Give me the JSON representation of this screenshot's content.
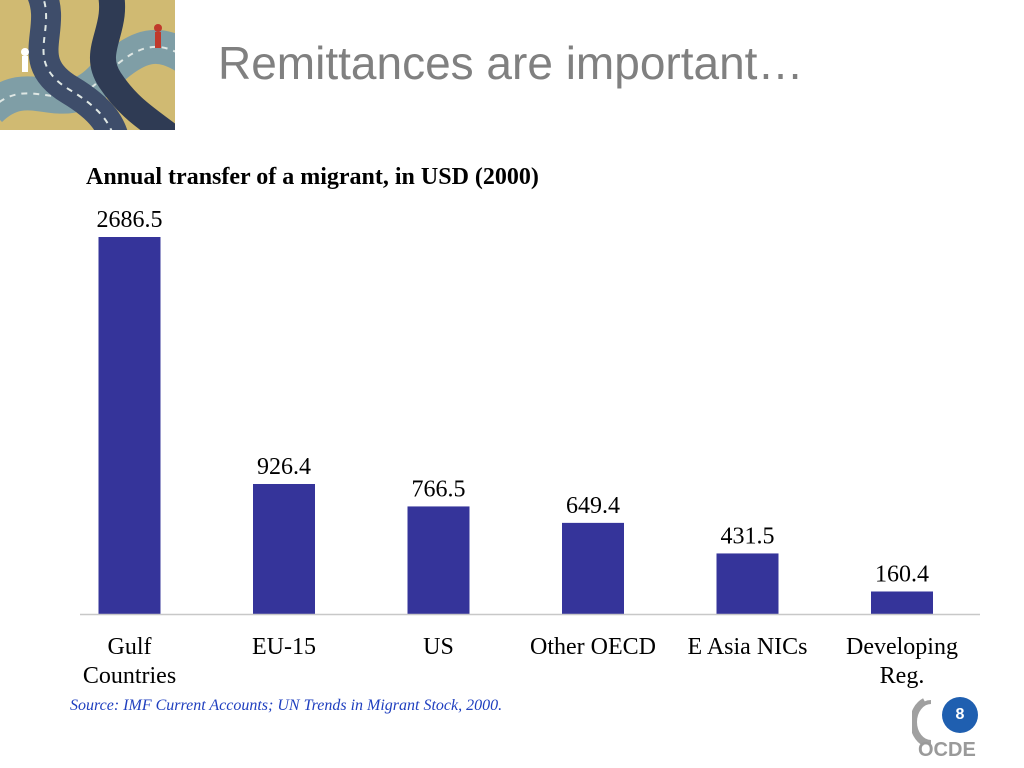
{
  "slide": {
    "title": "Remittances are important…",
    "source": "Source: IMF Current Accounts; UN Trends in Migrant Stock, 2000.",
    "page_number": "8",
    "logo_text": "OCDE"
  },
  "colors": {
    "bar": "#35349a",
    "title": "#808080",
    "source": "#1f3fbf",
    "badge": "#1f5fb0"
  },
  "chart_data": {
    "type": "bar",
    "title": "Annual transfer of a migrant, in USD (2000)",
    "categories": [
      [
        "Gulf",
        "Countries"
      ],
      [
        "EU-15"
      ],
      [
        "US"
      ],
      [
        "Other OECD"
      ],
      [
        "E Asia NICs"
      ],
      [
        "Developing",
        "Reg."
      ]
    ],
    "values": [
      2686.5,
      926.4,
      766.5,
      649.4,
      431.5,
      160.4
    ],
    "value_labels": [
      "2686.5",
      "926.4",
      "766.5",
      "649.4",
      "431.5",
      "160.4"
    ],
    "xlabel": "",
    "ylabel": "",
    "ylim": [
      0,
      2686.5
    ],
    "grid": false,
    "legend": "none"
  }
}
